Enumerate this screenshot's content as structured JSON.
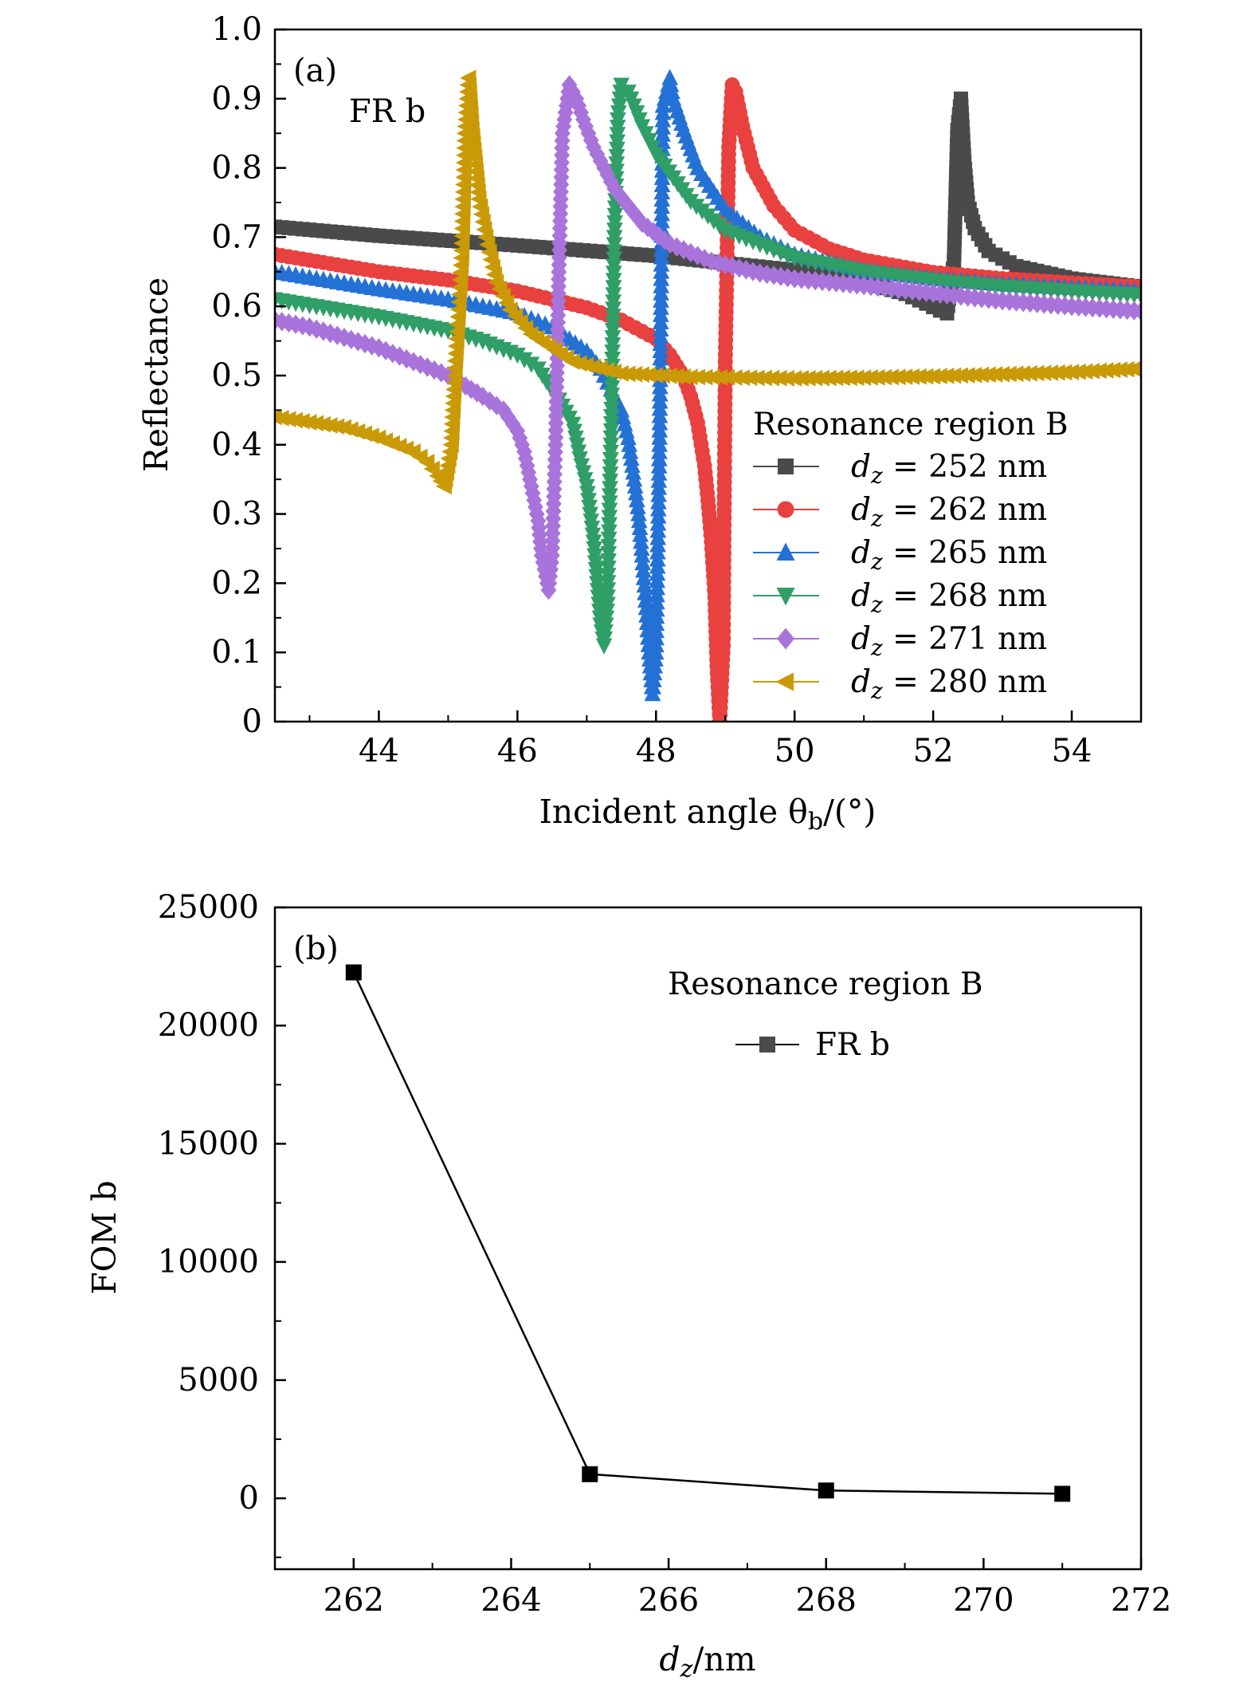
{
  "chart_data": [
    {
      "type": "line",
      "panel_label": "(a)",
      "annotation": "FR b",
      "xlabel": "Incident angle θb/(°)",
      "xlabel_parts": {
        "main": "Incident angle θ",
        "sub": "b",
        "tail": "/(°)"
      },
      "ylabel": "Reflectance",
      "xlim": [
        42.5,
        55
      ],
      "ylim": [
        0,
        1.0
      ],
      "xticks": [
        44,
        46,
        48,
        50,
        52,
        54
      ],
      "xtick_labels": [
        "44",
        "46",
        "48",
        "50",
        "52",
        "54"
      ],
      "yticks": [
        0,
        0.1,
        0.2,
        0.3,
        0.4,
        0.5,
        0.6,
        0.7,
        0.8,
        0.9,
        1.0
      ],
      "ytick_labels": [
        "0",
        "0.1",
        "0.2",
        "0.3",
        "0.4",
        "0.5",
        "0.6",
        "0.7",
        "0.8",
        "0.9",
        "1.0"
      ],
      "legend_title": "Resonance region B",
      "legend_position": "lower-right",
      "series": [
        {
          "name": "dz = 252 nm",
          "legend_value": "= 252 nm",
          "color": "#4a4a4a",
          "marker": "square",
          "points": [
            [
              42.5,
              0.715
            ],
            [
              44,
              0.702
            ],
            [
              46,
              0.688
            ],
            [
              48,
              0.673
            ],
            [
              50,
              0.652
            ],
            [
              51,
              0.635
            ],
            [
              51.6,
              0.618
            ],
            [
              51.9,
              0.604
            ],
            [
              52.1,
              0.594
            ],
            [
              52.2,
              0.59
            ],
            [
              52.3,
              0.665
            ],
            [
              52.35,
              0.855
            ],
            [
              52.4,
              0.9
            ],
            [
              52.45,
              0.808
            ],
            [
              52.5,
              0.75
            ],
            [
              52.6,
              0.713
            ],
            [
              52.8,
              0.68
            ],
            [
              53.2,
              0.658
            ],
            [
              54,
              0.64
            ],
            [
              55,
              0.628
            ]
          ]
        },
        {
          "name": "dz = 262 nm",
          "legend_value": "= 262 nm",
          "color": "#e8413f",
          "marker": "circle",
          "points": [
            [
              42.5,
              0.675
            ],
            [
              44,
              0.65
            ],
            [
              45,
              0.638
            ],
            [
              46,
              0.622
            ],
            [
              47,
              0.598
            ],
            [
              47.5,
              0.58
            ],
            [
              48,
              0.553
            ],
            [
              48.2,
              0.53
            ],
            [
              48.4,
              0.498
            ],
            [
              48.5,
              0.47
            ],
            [
              48.6,
              0.432
            ],
            [
              48.7,
              0.37
            ],
            [
              48.75,
              0.32
            ],
            [
              48.8,
              0.26
            ],
            [
              48.85,
              0.18
            ],
            [
              48.88,
              0.08
            ],
            [
              48.92,
              0.0
            ],
            [
              48.97,
              0.11
            ],
            [
              49.0,
              0.52
            ],
            [
              49.05,
              0.83
            ],
            [
              49.1,
              0.92
            ],
            [
              49.15,
              0.91
            ],
            [
              49.25,
              0.86
            ],
            [
              49.4,
              0.8
            ],
            [
              49.7,
              0.745
            ],
            [
              50,
              0.71
            ],
            [
              50.5,
              0.683
            ],
            [
              51,
              0.667
            ],
            [
              52,
              0.649
            ],
            [
              53,
              0.64
            ],
            [
              54,
              0.634
            ],
            [
              55,
              0.628
            ]
          ]
        },
        {
          "name": "dz = 265 nm",
          "legend_value": "= 265 nm",
          "color": "#2471d6",
          "marker": "triangle-up",
          "points": [
            [
              42.5,
              0.65
            ],
            [
              44,
              0.625
            ],
            [
              45,
              0.61
            ],
            [
              46,
              0.59
            ],
            [
              46.5,
              0.57
            ],
            [
              47,
              0.535
            ],
            [
              47.2,
              0.51
            ],
            [
              47.4,
              0.47
            ],
            [
              47.5,
              0.45
            ],
            [
              47.6,
              0.41
            ],
            [
              47.7,
              0.34
            ],
            [
              47.75,
              0.3
            ],
            [
              47.8,
              0.24
            ],
            [
              47.85,
              0.175
            ],
            [
              47.9,
              0.1
            ],
            [
              47.95,
              0.04
            ],
            [
              48.0,
              0.1
            ],
            [
              48.05,
              0.4
            ],
            [
              48.1,
              0.89
            ],
            [
              48.2,
              0.93
            ],
            [
              48.25,
              0.9
            ],
            [
              48.4,
              0.855
            ],
            [
              48.6,
              0.8
            ],
            [
              49,
              0.74
            ],
            [
              49.5,
              0.7
            ],
            [
              50,
              0.675
            ],
            [
              51,
              0.652
            ],
            [
              52,
              0.64
            ],
            [
              53,
              0.632
            ],
            [
              54,
              0.627
            ],
            [
              55,
              0.622
            ]
          ]
        },
        {
          "name": "dz = 268 nm",
          "legend_value": "= 268 nm",
          "color": "#2f9e67",
          "marker": "triangle-down",
          "points": [
            [
              42.5,
              0.61
            ],
            [
              44,
              0.585
            ],
            [
              45,
              0.565
            ],
            [
              45.5,
              0.55
            ],
            [
              46,
              0.53
            ],
            [
              46.3,
              0.51
            ],
            [
              46.6,
              0.465
            ],
            [
              46.8,
              0.43
            ],
            [
              46.9,
              0.38
            ],
            [
              47.0,
              0.34
            ],
            [
              47.05,
              0.3
            ],
            [
              47.1,
              0.26
            ],
            [
              47.15,
              0.2
            ],
            [
              47.2,
              0.14
            ],
            [
              47.25,
              0.11
            ],
            [
              47.3,
              0.17
            ],
            [
              47.35,
              0.4
            ],
            [
              47.4,
              0.7
            ],
            [
              47.45,
              0.87
            ],
            [
              47.5,
              0.92
            ],
            [
              47.6,
              0.91
            ],
            [
              47.8,
              0.86
            ],
            [
              48.0,
              0.82
            ],
            [
              48.5,
              0.752
            ],
            [
              49,
              0.71
            ],
            [
              50,
              0.67
            ],
            [
              51,
              0.65
            ],
            [
              52,
              0.637
            ],
            [
              53,
              0.628
            ],
            [
              54,
              0.622
            ],
            [
              55,
              0.616
            ]
          ]
        },
        {
          "name": "dz = 271 nm",
          "legend_value": "= 271 nm",
          "color": "#a874db",
          "marker": "diamond",
          "points": [
            [
              42.5,
              0.58
            ],
            [
              43,
              0.57
            ],
            [
              44,
              0.54
            ],
            [
              45,
              0.5
            ],
            [
              45.5,
              0.47
            ],
            [
              45.8,
              0.45
            ],
            [
              46.0,
              0.42
            ],
            [
              46.1,
              0.39
            ],
            [
              46.2,
              0.34
            ],
            [
              46.3,
              0.29
            ],
            [
              46.35,
              0.24
            ],
            [
              46.45,
              0.19
            ],
            [
              46.5,
              0.24
            ],
            [
              46.55,
              0.4
            ],
            [
              46.6,
              0.66
            ],
            [
              46.65,
              0.85
            ],
            [
              46.75,
              0.92
            ],
            [
              46.85,
              0.9
            ],
            [
              46.95,
              0.87
            ],
            [
              47.1,
              0.83
            ],
            [
              47.4,
              0.77
            ],
            [
              47.8,
              0.72
            ],
            [
              48.2,
              0.69
            ],
            [
              48.8,
              0.665
            ],
            [
              49.5,
              0.648
            ],
            [
              50,
              0.64
            ],
            [
              51,
              0.63
            ],
            [
              52,
              0.619
            ],
            [
              53,
              0.608
            ],
            [
              54,
              0.6
            ],
            [
              55,
              0.593
            ]
          ]
        },
        {
          "name": "dz = 280 nm",
          "legend_value": "= 280 nm",
          "color": "#c99a06",
          "marker": "triangle-left",
          "points": [
            [
              42.5,
              0.44
            ],
            [
              43.5,
              0.425
            ],
            [
              44,
              0.41
            ],
            [
              44.5,
              0.39
            ],
            [
              44.7,
              0.375
            ],
            [
              44.85,
              0.355
            ],
            [
              44.95,
              0.34
            ],
            [
              45.05,
              0.4
            ],
            [
              45.1,
              0.5
            ],
            [
              45.2,
              0.67
            ],
            [
              45.25,
              0.85
            ],
            [
              45.3,
              0.93
            ],
            [
              45.35,
              0.855
            ],
            [
              45.45,
              0.755
            ],
            [
              45.55,
              0.7
            ],
            [
              45.7,
              0.635
            ],
            [
              45.9,
              0.595
            ],
            [
              46.2,
              0.56
            ],
            [
              46.8,
              0.52
            ],
            [
              47.5,
              0.503
            ],
            [
              48.5,
              0.498
            ],
            [
              50,
              0.496
            ],
            [
              51,
              0.497
            ],
            [
              52,
              0.499
            ],
            [
              53,
              0.502
            ],
            [
              54,
              0.505
            ],
            [
              55,
              0.51
            ]
          ]
        }
      ]
    },
    {
      "type": "line",
      "panel_label": "(b)",
      "xlabel": "dz/nm",
      "xlabel_parts": {
        "main": "d",
        "sub": "z",
        "tail": "/nm"
      },
      "ylabel": "FOM b",
      "xlim": [
        261,
        272
      ],
      "ylim": [
        -3000,
        25000
      ],
      "xticks": [
        262,
        264,
        266,
        268,
        270,
        272
      ],
      "xtick_labels": [
        "262",
        "264",
        "266",
        "268",
        "270",
        "272"
      ],
      "yticks": [
        0,
        5000,
        10000,
        15000,
        20000,
        25000
      ],
      "ytick_labels": [
        "0",
        "5000",
        "10000",
        "15000",
        "20000",
        "25000"
      ],
      "legend_title": "Resonance region B",
      "legend_position": "top-right",
      "series": [
        {
          "name": "FR b",
          "color": "#000000",
          "marker": "square",
          "x": [
            262,
            265,
            268,
            271
          ],
          "values": [
            22250,
            1020,
            330,
            190
          ]
        }
      ]
    }
  ]
}
